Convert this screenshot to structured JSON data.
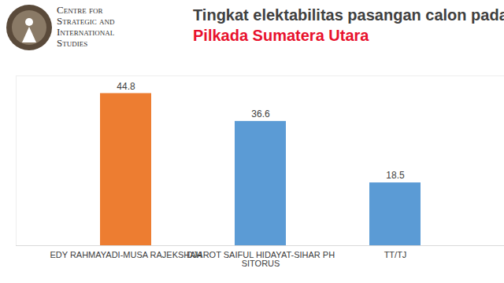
{
  "chart_data": {
    "type": "bar",
    "title": "Tingkat elektabilitas pasangan calon pada",
    "subtitle": "Pilkada Sumatera Utara",
    "annotations": [
      "Centre for Strategic and International Studies"
    ],
    "categories": [
      "EDY RAHMAYADI-MUSA RAJEKSHAH",
      "DJAROT SAIFUL HIDAYAT-SIHAR PH SITORUS",
      "TT/TJ"
    ],
    "values": [
      44.8,
      36.6,
      18.5
    ],
    "colors": [
      "#ed7d31",
      "#5b9bd5",
      "#5b9bd5"
    ],
    "ylim": [
      0,
      50
    ],
    "data_labels": true,
    "tick_labels": "x",
    "grid": false
  }
}
